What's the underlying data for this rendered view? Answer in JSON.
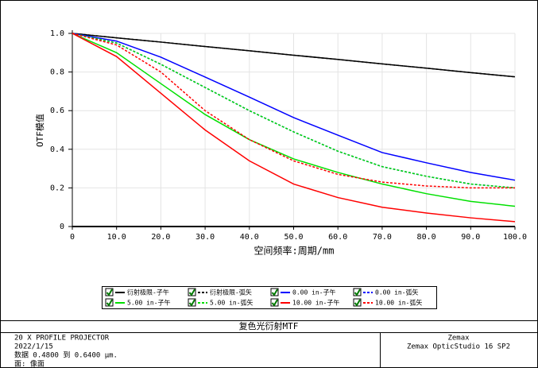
{
  "chart_data": {
    "type": "line",
    "y_label": "OTF模值",
    "x_label": "空间频率:周期/mm",
    "x": [
      0,
      10,
      20,
      30,
      40,
      50,
      60,
      70,
      80,
      90,
      100
    ],
    "xlim": [
      0,
      100
    ],
    "xticks": [
      0,
      {
        "value": 10,
        "label": "10.0"
      },
      {
        "value": 20,
        "label": "20.0"
      },
      {
        "value": 30,
        "label": "30.0"
      },
      {
        "value": 40,
        "label": "40.0"
      },
      {
        "value": 50,
        "label": "50.0"
      },
      {
        "value": 60,
        "label": "60.0"
      },
      {
        "value": 70,
        "label": "70.0"
      },
      {
        "value": 80,
        "label": "80.0"
      },
      {
        "value": 90,
        "label": "90.0"
      },
      {
        "value": 100,
        "label": "100.0"
      }
    ],
    "ylim": [
      0,
      1
    ],
    "yticks": [
      0,
      0.2,
      0.4,
      0.6,
      0.8,
      {
        "value": 1,
        "label": "1.0"
      }
    ],
    "grid": true,
    "series": [
      {
        "name": "衍射极限-子午",
        "color": "#000000",
        "dashed": false,
        "values": [
          1,
          0.977,
          0.955,
          0.932,
          0.91,
          0.887,
          0.865,
          0.842,
          0.82,
          0.797,
          0.775
        ]
      },
      {
        "name": "衍射极限-弧矢",
        "color": "#000000",
        "dashed": true,
        "values": [
          1,
          0.977,
          0.955,
          0.932,
          0.91,
          0.887,
          0.865,
          0.842,
          0.82,
          0.797,
          0.775
        ]
      },
      {
        "name": "0.00 in-子午",
        "color": "#0000ff",
        "dashed": false,
        "values": [
          1,
          0.96,
          0.877,
          0.774,
          0.67,
          0.564,
          0.473,
          0.383,
          0.33,
          0.28,
          0.24
        ]
      },
      {
        "name": "0.00 in-弧矢",
        "color": "#0000ff",
        "dashed": true,
        "values": [
          1,
          0.95,
          0.84,
          0.72,
          0.6,
          0.49,
          0.39,
          0.31,
          0.26,
          0.22,
          0.2
        ]
      },
      {
        "name": "5.00 in-子午",
        "color": "#00e000",
        "dashed": false,
        "values": [
          1,
          0.9,
          0.74,
          0.58,
          0.45,
          0.35,
          0.28,
          0.22,
          0.17,
          0.13,
          0.105
        ]
      },
      {
        "name": "5.00 in-弧矢",
        "color": "#00e000",
        "dashed": true,
        "values": [
          1,
          0.95,
          0.84,
          0.72,
          0.6,
          0.49,
          0.39,
          0.31,
          0.26,
          0.22,
          0.2
        ]
      },
      {
        "name": "10.00 in-子午",
        "color": "#ff0000",
        "dashed": false,
        "values": [
          1,
          0.88,
          0.69,
          0.5,
          0.34,
          0.22,
          0.15,
          0.1,
          0.07,
          0.045,
          0.025
        ]
      },
      {
        "name": "10.00 in-弧矢",
        "color": "#ff0000",
        "dashed": true,
        "values": [
          1,
          0.94,
          0.8,
          0.6,
          0.45,
          0.34,
          0.27,
          0.23,
          0.21,
          0.2,
          0.2
        ]
      }
    ]
  },
  "footer": {
    "title": "复色光衍射MTF",
    "left_lines": [
      "20 X PROFILE PROJECTOR",
      "2022/1/15",
      "数据 0.4800 到 0.6400 μm.",
      "面: 像面"
    ],
    "right_lines": [
      "Zemax",
      "Zemax OpticStudio 16 SP2"
    ]
  }
}
